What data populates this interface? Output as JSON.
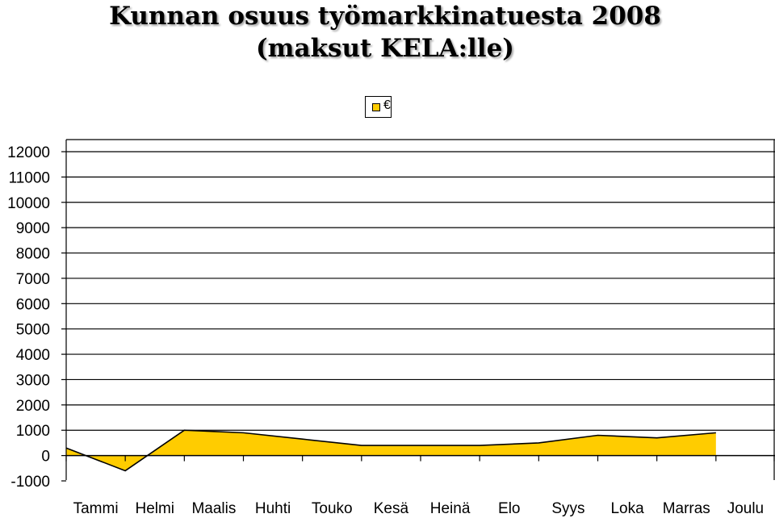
{
  "chart_data": {
    "type": "area",
    "title": "Kunnan osuus työmarkkinatuesta 2008",
    "subtitle": "(maksut KELA:lle)",
    "series": [
      {
        "name": "€",
        "color": "#FFCC00",
        "values": [
          300,
          -600,
          1000,
          900,
          650,
          400,
          400,
          400,
          500,
          800,
          700,
          900
        ]
      }
    ],
    "categories": [
      "Tammi",
      "Helmi",
      "Maalis",
      "Huhti",
      "Touko",
      "Kesä",
      "Heinä",
      "Elo",
      "Syys",
      "Loka",
      "Marras",
      "Joulu"
    ],
    "y_ticks": [
      "12000",
      "11000",
      "10000",
      "9000",
      "8000",
      "7000",
      "6000",
      "5000",
      "4000",
      "3000",
      "2000",
      "1000",
      "0",
      "-1000"
    ],
    "ylim": [
      -1000,
      12000
    ],
    "grid": true,
    "legend_position": "top-right"
  }
}
